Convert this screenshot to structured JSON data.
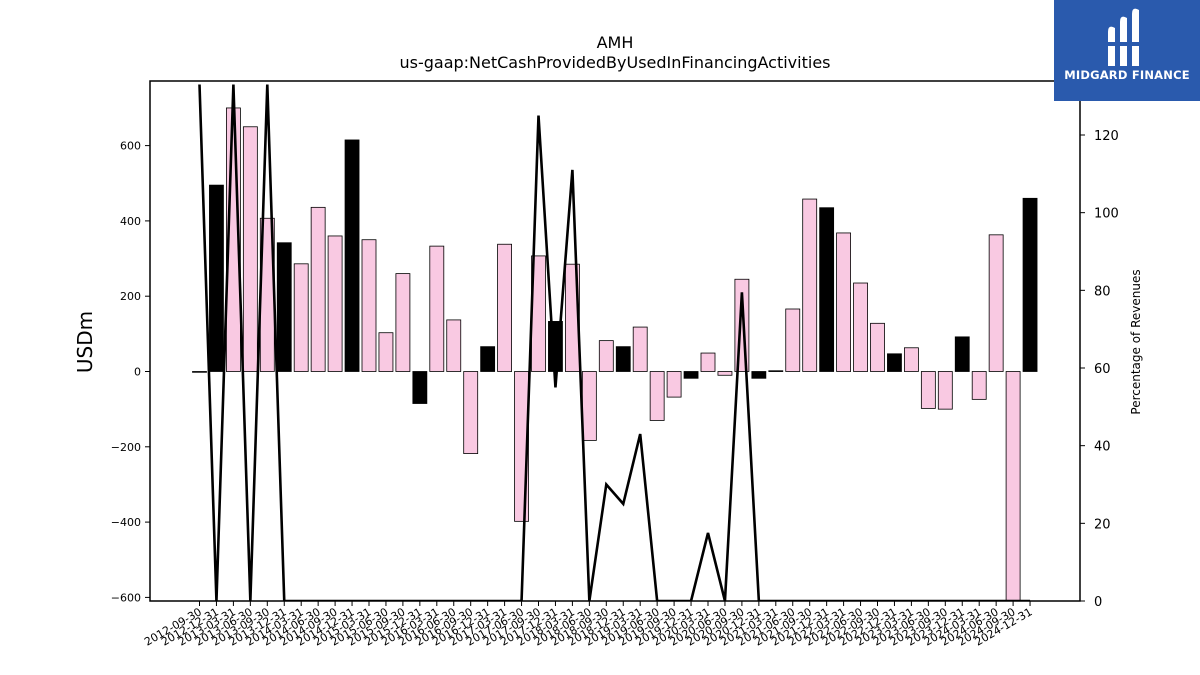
{
  "chart_data": {
    "type": "bar",
    "title": "AMH",
    "subtitle": "us-gaap:NetCashProvidedByUsedInFinancingActivities",
    "ylabel": "USDm",
    "y2label": "Percentage of Revenues",
    "ylim": [
      -610,
      770
    ],
    "y2lim": [
      0,
      133
    ],
    "yticks": [
      -600,
      -400,
      -200,
      0,
      200,
      400,
      600
    ],
    "y2ticks": [
      0,
      20,
      40,
      60,
      80,
      100,
      120
    ],
    "categories": [
      "2012-09-30",
      "2012-12-31",
      "2013-03-31",
      "2013-06-30",
      "2013-09-30",
      "2013-12-31",
      "2014-03-31",
      "2014-06-30",
      "2014-09-30",
      "2014-12-31",
      "2015-03-31",
      "2015-06-30",
      "2015-09-30",
      "2015-12-31",
      "2016-03-31",
      "2016-06-30",
      "2016-09-30",
      "2016-12-31",
      "2017-03-31",
      "2017-06-30",
      "2017-09-30",
      "2017-12-31",
      "2018-03-31",
      "2018-06-30",
      "2018-09-30",
      "2018-12-31",
      "2019-03-31",
      "2019-06-30",
      "2019-09-30",
      "2019-12-31",
      "2020-03-31",
      "2020-06-30",
      "2020-09-30",
      "2020-12-31",
      "2021-03-31",
      "2021-06-30",
      "2021-09-30",
      "2021-12-31",
      "2022-03-31",
      "2022-06-30",
      "2022-09-30",
      "2022-12-31",
      "2023-03-31",
      "2023-06-30",
      "2023-09-30",
      "2023-12-31",
      "2024-03-31",
      "2024-06-30",
      "2024-09-30",
      "2024-12-31"
    ],
    "series": [
      {
        "type": "bar",
        "values": [
          0,
          495,
          700,
          650,
          407,
          342,
          286,
          436,
          360,
          615,
          350,
          103,
          260,
          -85,
          333,
          137,
          -218,
          66,
          338,
          -398,
          307,
          133,
          285,
          -183,
          82,
          66,
          118,
          -130,
          -68,
          -18,
          49,
          -10,
          245,
          -18,
          2,
          166,
          458,
          435,
          368,
          235,
          128,
          47,
          63,
          -98,
          -100,
          92,
          -74,
          363,
          -610,
          460
        ],
        "highlight": [
          false,
          true,
          false,
          false,
          false,
          true,
          false,
          false,
          false,
          true,
          false,
          false,
          false,
          true,
          false,
          false,
          false,
          true,
          false,
          false,
          false,
          true,
          false,
          false,
          false,
          true,
          false,
          false,
          false,
          true,
          false,
          false,
          false,
          true,
          false,
          false,
          false,
          true,
          false,
          false,
          false,
          true,
          false,
          false,
          false,
          true,
          false,
          false,
          false,
          true
        ]
      },
      {
        "type": "line",
        "axis": "right",
        "values": [
          133,
          0,
          133,
          0,
          133,
          0,
          0,
          0,
          0,
          0,
          0,
          0,
          0,
          0,
          0,
          0,
          0,
          0,
          0,
          0,
          125,
          55,
          111,
          0,
          30,
          25,
          43,
          0,
          0,
          0,
          17.5,
          0,
          79.5,
          0,
          0,
          0,
          0,
          0,
          0,
          0,
          0,
          0,
          0,
          0,
          0,
          0,
          0,
          0,
          0,
          0
        ]
      }
    ],
    "colors": {
      "bar_normal": "#f9c9e2",
      "bar_highlight": "#000000",
      "line": "#000000"
    }
  },
  "logo": {
    "text": "MIDGARD FINANCE",
    "background": "#2a5aad"
  }
}
